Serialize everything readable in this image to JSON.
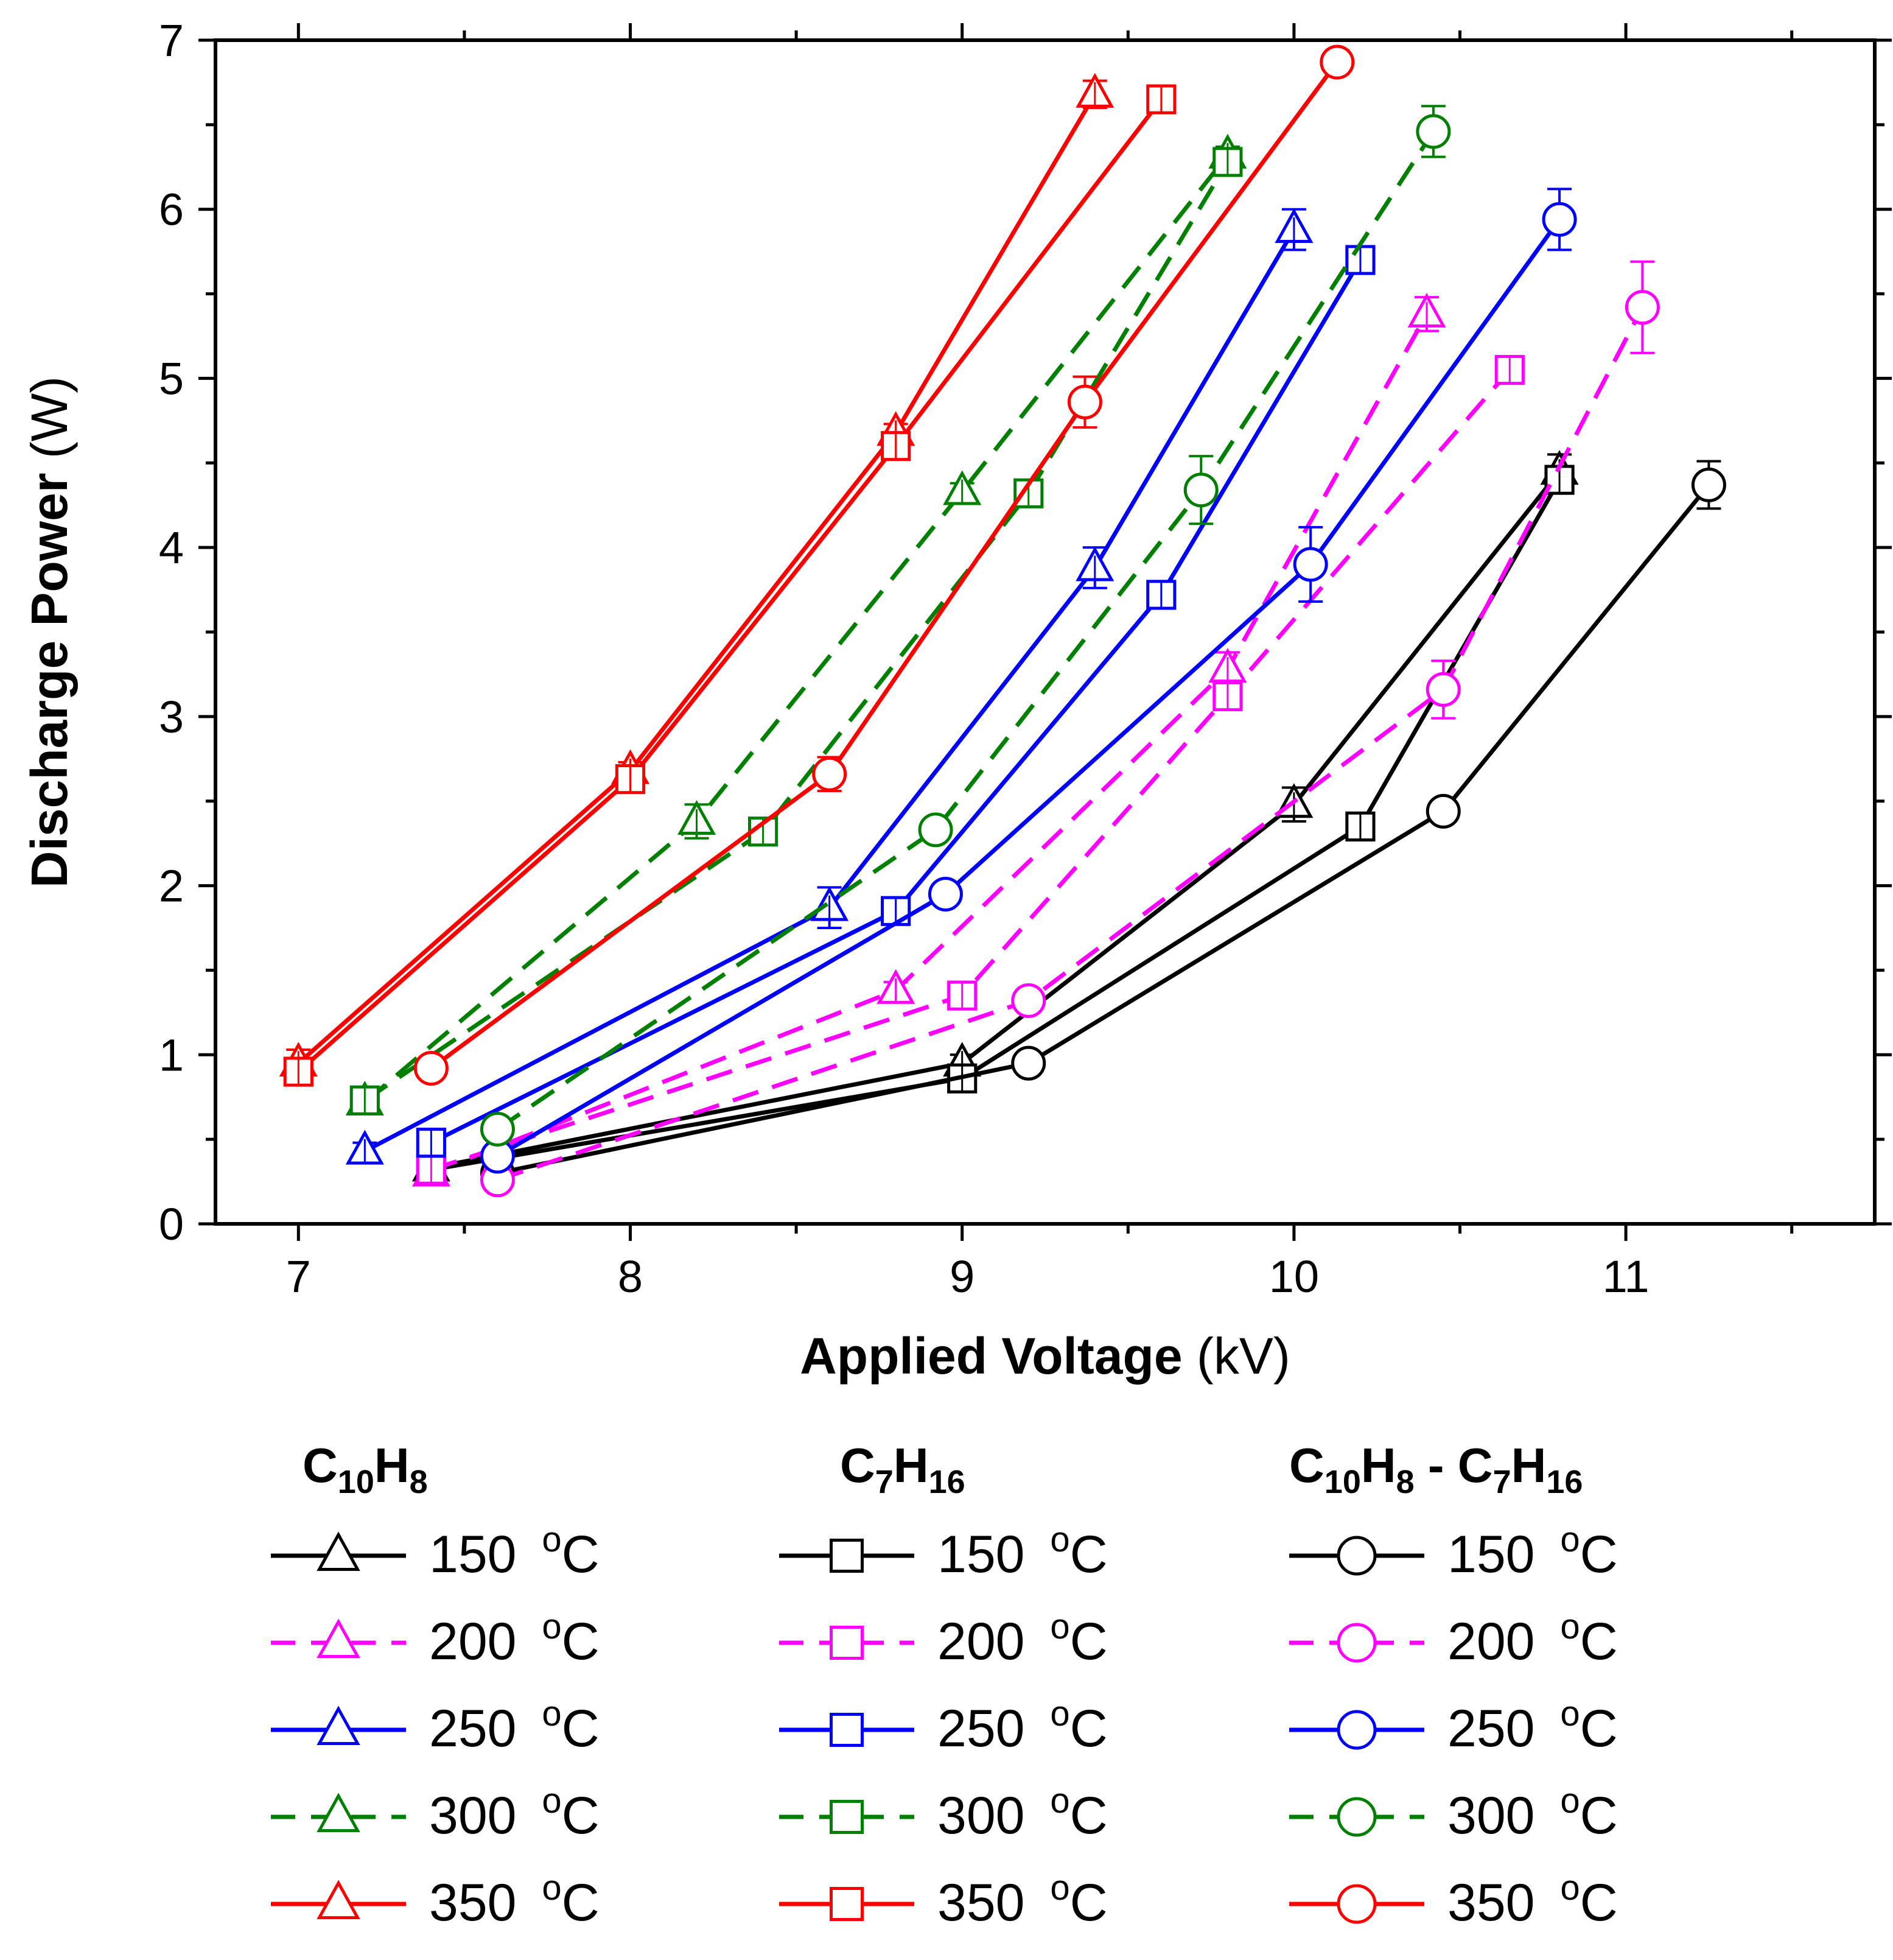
{
  "chart_data": {
    "type": "line",
    "xlabel": {
      "bold": "Applied Voltage",
      "unit": " (kV)"
    },
    "ylabel": {
      "bold": "Discharge Power",
      "unit": " (W)"
    },
    "xlim": [
      6.75,
      11.75
    ],
    "ylim": [
      0,
      7
    ],
    "xticks": [
      7,
      8,
      9,
      10,
      11
    ],
    "yticks": [
      0,
      1,
      2,
      3,
      4,
      5,
      6,
      7
    ],
    "grid": false,
    "legend_position": "bottom",
    "temperature_unit": "°C",
    "groups": [
      {
        "id": "c10h8",
        "marker": "triangle",
        "heading": [
          "C",
          "10",
          "H",
          "8"
        ]
      },
      {
        "id": "c7h16",
        "marker": "square",
        "heading": [
          "C",
          "7",
          "H",
          "16"
        ]
      },
      {
        "id": "mix",
        "marker": "circle",
        "heading": [
          "C",
          "10",
          "H",
          "8",
          " - C",
          "7",
          "H",
          "16"
        ]
      }
    ],
    "temperatures": [
      {
        "value": "150",
        "color": "#000000",
        "dash": false
      },
      {
        "value": "200",
        "color": "#ff00ff",
        "dash": true
      },
      {
        "value": "250",
        "color": "#0000ff",
        "dash": false
      },
      {
        "value": "300",
        "color": "#008000",
        "dash": true
      },
      {
        "value": "350",
        "color": "#ff0000",
        "dash": false
      }
    ],
    "series": [
      {
        "group": "c10h8",
        "temp": "150",
        "x": [
          7.4,
          9.0,
          10.0,
          10.8
        ],
        "y": [
          0.33,
          0.95,
          2.48,
          4.45
        ],
        "err": [
          0.04,
          0.05,
          0.1,
          0.1
        ]
      },
      {
        "group": "c10h8",
        "temp": "200",
        "x": [
          7.4,
          8.8,
          9.8,
          10.4
        ],
        "y": [
          0.3,
          1.38,
          3.28,
          5.38
        ],
        "err": [
          0.06,
          0.05,
          0.1,
          0.1
        ]
      },
      {
        "group": "c10h8",
        "temp": "250",
        "x": [
          7.2,
          8.6,
          9.4,
          10.0
        ],
        "y": [
          0.43,
          1.87,
          3.88,
          5.88
        ],
        "err": [
          0.05,
          0.12,
          0.12,
          0.12
        ]
      },
      {
        "group": "c10h8",
        "temp": "300",
        "x": [
          7.2,
          8.2,
          9.0,
          9.8
        ],
        "y": [
          0.72,
          2.38,
          4.33,
          6.32
        ],
        "err": [
          0.05,
          0.1,
          0.05,
          0.05
        ]
      },
      {
        "group": "c10h8",
        "temp": "350",
        "x": [
          7.0,
          8.0,
          8.8,
          9.4
        ],
        "y": [
          0.95,
          2.68,
          4.68,
          6.68
        ],
        "err": [
          0.08,
          0.05,
          0.05,
          0.08
        ]
      },
      {
        "group": "c7h16",
        "temp": "150",
        "x": [
          7.4,
          9.0,
          10.2,
          10.8
        ],
        "y": [
          0.32,
          0.86,
          2.35,
          4.4
        ],
        "err": [
          0.03,
          0.04,
          0.04,
          0.05
        ]
      },
      {
        "group": "c7h16",
        "temp": "200",
        "x": [
          7.4,
          9.0,
          9.8,
          10.65
        ],
        "y": [
          0.32,
          1.35,
          3.12,
          5.05
        ],
        "err": [
          0.03,
          0.04,
          0.05,
          0.04
        ]
      },
      {
        "group": "c7h16",
        "temp": "250",
        "x": [
          7.4,
          8.8,
          9.6,
          10.2
        ],
        "y": [
          0.48,
          1.85,
          3.72,
          5.7
        ],
        "err": [
          0.04,
          0.04,
          0.04,
          0.04
        ]
      },
      {
        "group": "c7h16",
        "temp": "300",
        "x": [
          7.2,
          8.4,
          9.2,
          9.8
        ],
        "y": [
          0.73,
          2.32,
          4.32,
          6.28
        ],
        "err": [
          0.03,
          0.04,
          0.04,
          0.04
        ]
      },
      {
        "group": "c7h16",
        "temp": "350",
        "x": [
          7.0,
          8.0,
          8.8,
          9.6
        ],
        "y": [
          0.9,
          2.63,
          4.6,
          6.65
        ],
        "err": [
          0.03,
          0.04,
          0.04,
          0.04
        ]
      },
      {
        "group": "mix",
        "temp": "150",
        "x": [
          7.6,
          9.2,
          10.45,
          11.25
        ],
        "y": [
          0.3,
          0.95,
          2.44,
          4.37
        ],
        "err": [
          0.03,
          0.04,
          0.04,
          0.14
        ]
      },
      {
        "group": "mix",
        "temp": "200",
        "x": [
          7.6,
          9.2,
          10.45,
          11.05
        ],
        "y": [
          0.26,
          1.32,
          3.16,
          5.42
        ],
        "err": [
          0.04,
          0.05,
          0.17,
          0.27
        ]
      },
      {
        "group": "mix",
        "temp": "250",
        "x": [
          7.6,
          8.95,
          10.05,
          10.8
        ],
        "y": [
          0.4,
          1.95,
          3.9,
          5.94
        ],
        "err": [
          0.06,
          0.05,
          0.22,
          0.18
        ]
      },
      {
        "group": "mix",
        "temp": "300",
        "x": [
          7.6,
          8.92,
          9.72,
          10.42
        ],
        "y": [
          0.56,
          2.33,
          4.34,
          6.46
        ],
        "err": [
          0.05,
          0.06,
          0.2,
          0.15
        ]
      },
      {
        "group": "mix",
        "temp": "350",
        "x": [
          7.4,
          8.6,
          9.37,
          10.13
        ],
        "y": [
          0.92,
          2.66,
          4.86,
          6.87
        ],
        "err": [
          0.04,
          0.1,
          0.15,
          0.07
        ]
      }
    ]
  }
}
